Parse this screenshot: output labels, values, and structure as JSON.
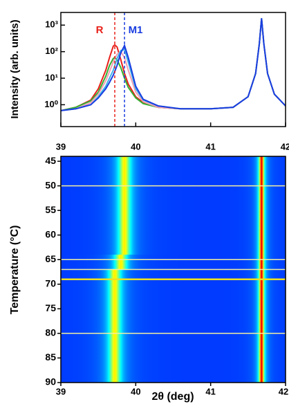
{
  "chart_data": [
    {
      "type": "line",
      "ylabel": "Intensity (arb. units)",
      "log_y": true,
      "xlim": [
        39,
        42
      ],
      "xticks": [
        39,
        40,
        41,
        42
      ],
      "ylim": [
        0.15,
        3000
      ],
      "yticks": [
        {
          "value": 1,
          "label": "10⁰"
        },
        {
          "value": 10,
          "label": "10¹"
        },
        {
          "value": 100,
          "label": "10²"
        },
        {
          "value": 1000,
          "label": "10³"
        }
      ],
      "x": [
        39.0,
        39.2,
        39.4,
        39.5,
        39.6,
        39.65,
        39.7,
        39.72,
        39.75,
        39.8,
        39.85,
        39.9,
        40.0,
        40.1,
        40.3,
        40.6,
        41.0,
        41.3,
        41.5,
        41.6,
        41.65,
        41.68,
        41.71,
        41.76,
        41.85,
        42.0
      ],
      "series": [
        {
          "color": "#e8201a",
          "values": [
            0.6,
            0.8,
            1.5,
            4,
            20,
            60,
            160,
            180,
            150,
            50,
            15,
            6,
            2,
            1.2,
            0.8,
            0.7,
            0.7,
            0.8,
            2,
            15,
            200,
            1800,
            200,
            15,
            2.5,
            0.9
          ]
        },
        {
          "color": "#33b033",
          "values": [
            0.6,
            0.8,
            1.4,
            3,
            12,
            30,
            55,
            60,
            50,
            25,
            10,
            4.5,
            1.8,
            1.1,
            0.8,
            0.7,
            0.7,
            0.8,
            2,
            15,
            200,
            1800,
            200,
            15,
            2.5,
            0.9
          ]
        },
        {
          "color": "#f0a0b4",
          "values": [
            0.6,
            0.7,
            1.2,
            2.5,
            8,
            18,
            40,
            55,
            80,
            100,
            60,
            20,
            3,
            1.3,
            0.8,
            0.7,
            0.7,
            0.8,
            2,
            15,
            200,
            1800,
            200,
            15,
            2.5,
            0.9
          ]
        },
        {
          "color": "#40b0e8",
          "values": [
            0.6,
            0.7,
            1,
            2,
            5,
            10,
            20,
            30,
            55,
            110,
            120,
            40,
            4,
            1.5,
            0.9,
            0.7,
            0.7,
            0.8,
            2,
            15,
            200,
            1800,
            200,
            15,
            2.5,
            0.9
          ]
        },
        {
          "color": "#1a3ee0",
          "values": [
            0.6,
            0.7,
            1,
            1.8,
            4,
            7,
            13,
            18,
            30,
            90,
            170,
            60,
            5,
            1.6,
            0.9,
            0.7,
            0.7,
            0.8,
            2,
            15,
            200,
            1800,
            200,
            15,
            2.5,
            0.9
          ]
        }
      ],
      "vlines": [
        {
          "x": 39.72,
          "label": "R",
          "color": "#e8201a"
        },
        {
          "x": 39.85,
          "label": "M1",
          "color": "#1a3ee0"
        }
      ]
    },
    {
      "type": "heatmap",
      "xlabel": "2θ (deg)",
      "ylabel": "Temperature (°C)",
      "xlim": [
        39,
        42
      ],
      "xticks": [
        39,
        40,
        41,
        42
      ],
      "ylim": [
        44,
        90
      ],
      "yticks": [
        45,
        50,
        55,
        60,
        65,
        70,
        75,
        80,
        85,
        90
      ],
      "temperatures": [
        44,
        45,
        46,
        47,
        48,
        49,
        50,
        51,
        52,
        53,
        54,
        55,
        56,
        57,
        58,
        59,
        60,
        61,
        62,
        63,
        64,
        65,
        66,
        67,
        68,
        69,
        70,
        71,
        72,
        73,
        74,
        75,
        76,
        77,
        78,
        79,
        80,
        81,
        82,
        83,
        84,
        85,
        86,
        87,
        88,
        89
      ],
      "peak1": [
        39.85,
        39.85,
        39.85,
        39.85,
        39.85,
        39.85,
        39.85,
        39.85,
        39.85,
        39.85,
        39.85,
        39.85,
        39.85,
        39.85,
        39.85,
        39.85,
        39.85,
        39.85,
        39.85,
        39.85,
        39.8,
        39.8,
        39.8,
        39.72,
        39.72,
        39.72,
        39.72,
        39.72,
        39.72,
        39.72,
        39.72,
        39.72,
        39.72,
        39.72,
        39.72,
        39.72,
        39.72,
        39.72,
        39.72,
        39.72,
        39.72,
        39.72,
        39.72,
        39.72,
        39.72,
        39.72
      ],
      "peak2": 41.68,
      "hlines": [
        {
          "y": 50,
          "color": "#f4f0a0"
        },
        {
          "y": 65,
          "color": "#f4f0a0"
        },
        {
          "y": 67,
          "color": "#f4f0a0"
        },
        {
          "y": 69,
          "color": "#f0e020"
        },
        {
          "y": 80,
          "color": "#f4f0a0"
        }
      ]
    }
  ]
}
